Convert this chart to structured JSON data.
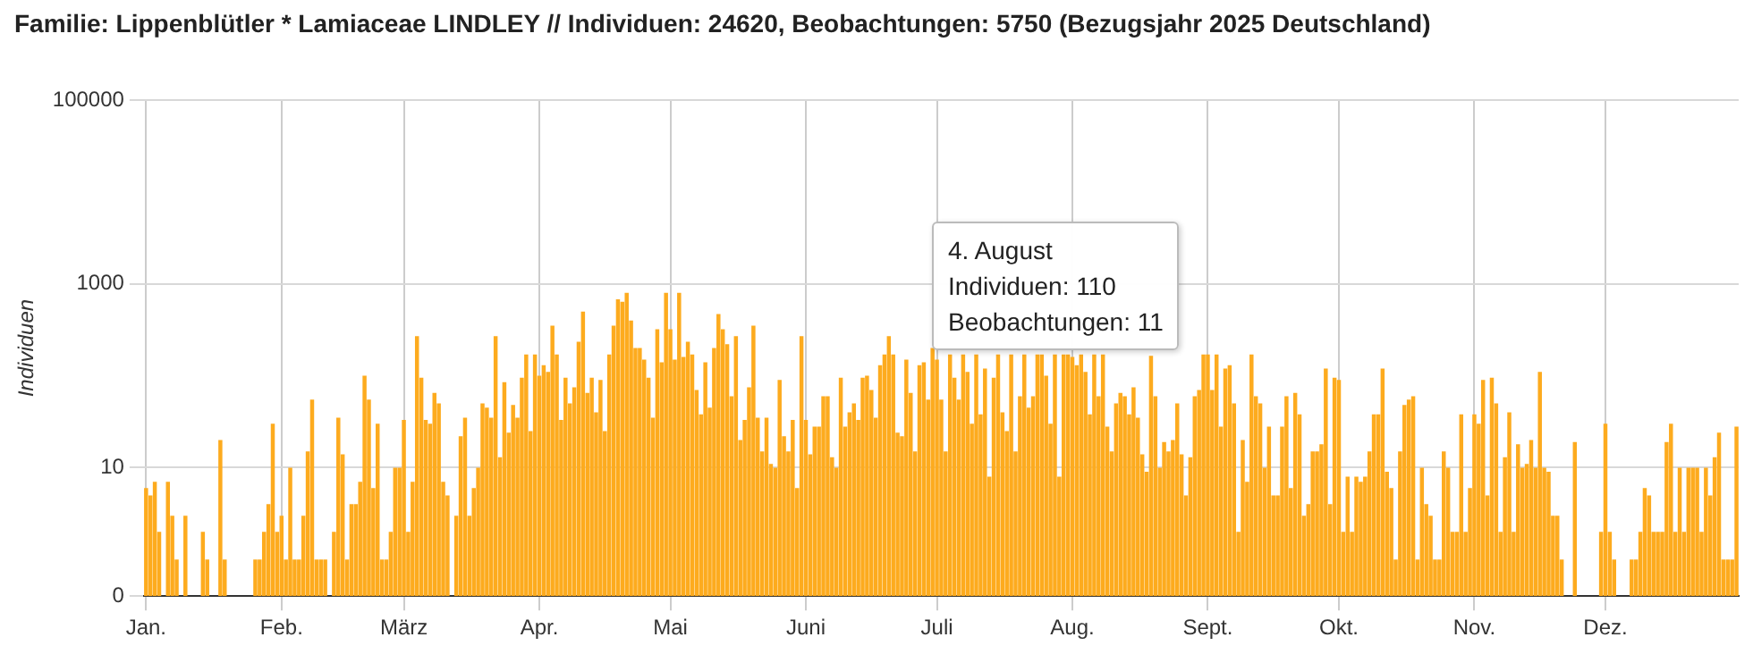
{
  "chart_data": {
    "type": "bar",
    "title": "Familie: Lippenblütler * Lamiaceae LINDLEY // Individuen: 24620, Beobachtungen: 5750 (Bezugsjahr 2025 Deutschland)",
    "ylabel": "Individuen",
    "categories": [
      "Jan.",
      null,
      null,
      null,
      null,
      null,
      null,
      null,
      null,
      null,
      null,
      null,
      null,
      null,
      null,
      null,
      null,
      null,
      null,
      null,
      null,
      null,
      null,
      null,
      null,
      null,
      null,
      null,
      null,
      null,
      null,
      "Feb.",
      null,
      null,
      null,
      null,
      null,
      null,
      null,
      null,
      null,
      null,
      null,
      null,
      null,
      null,
      null,
      null,
      null,
      null,
      null,
      null,
      null,
      null,
      null,
      null,
      null,
      null,
      null,
      "März",
      null,
      null,
      null,
      null,
      null,
      null,
      null,
      null,
      null,
      null,
      null,
      null,
      null,
      null,
      null,
      null,
      null,
      null,
      null,
      null,
      null,
      null,
      null,
      null,
      null,
      null,
      null,
      null,
      null,
      null,
      "Apr.",
      null,
      null,
      null,
      null,
      null,
      null,
      null,
      null,
      null,
      null,
      null,
      null,
      null,
      null,
      null,
      null,
      null,
      null,
      null,
      null,
      null,
      null,
      null,
      null,
      null,
      null,
      null,
      null,
      null,
      "Mai",
      null,
      null,
      null,
      null,
      null,
      null,
      null,
      null,
      null,
      null,
      null,
      null,
      null,
      null,
      null,
      null,
      null,
      null,
      null,
      null,
      null,
      null,
      null,
      null,
      null,
      null,
      null,
      null,
      null,
      null,
      "Juni",
      null,
      null,
      null,
      null,
      null,
      null,
      null,
      null,
      null,
      null,
      null,
      null,
      null,
      null,
      null,
      null,
      null,
      null,
      null,
      null,
      null,
      null,
      null,
      null,
      null,
      null,
      null,
      null,
      null,
      "Juli",
      null,
      null,
      null,
      null,
      null,
      null,
      null,
      null,
      null,
      null,
      null,
      null,
      null,
      null,
      null,
      null,
      null,
      null,
      null,
      null,
      null,
      null,
      null,
      null,
      null,
      null,
      null,
      null,
      null,
      null,
      "Aug.",
      null,
      null,
      null,
      null,
      null,
      null,
      null,
      null,
      null,
      null,
      null,
      null,
      null,
      null,
      null,
      null,
      null,
      null,
      null,
      null,
      null,
      null,
      null,
      null,
      null,
      null,
      null,
      null,
      null,
      null,
      "Sept.",
      null,
      null,
      null,
      null,
      null,
      null,
      null,
      null,
      null,
      null,
      null,
      null,
      null,
      null,
      null,
      null,
      null,
      null,
      null,
      null,
      null,
      null,
      null,
      null,
      null,
      null,
      null,
      null,
      null,
      "Okt.",
      null,
      null,
      null,
      null,
      null,
      null,
      null,
      null,
      null,
      null,
      null,
      null,
      null,
      null,
      null,
      null,
      null,
      null,
      null,
      null,
      null,
      null,
      null,
      null,
      null,
      null,
      null,
      null,
      null,
      null,
      "Nov.",
      null,
      null,
      null,
      null,
      null,
      null,
      null,
      null,
      null,
      null,
      null,
      null,
      null,
      null,
      null,
      null,
      null,
      null,
      null,
      null,
      null,
      null,
      null,
      null,
      null,
      null,
      null,
      null,
      null,
      "Dez.",
      null,
      null,
      null,
      null,
      null,
      null,
      null,
      null,
      null,
      null,
      null,
      null,
      null,
      null,
      null,
      null,
      null,
      null,
      null,
      null,
      null,
      null,
      null,
      null,
      null,
      null,
      null,
      null,
      null,
      null
    ],
    "values": [
      6,
      5,
      7,
      2,
      null,
      7,
      3,
      1,
      null,
      3,
      null,
      null,
      null,
      2,
      1,
      null,
      null,
      20,
      1,
      null,
      null,
      null,
      null,
      null,
      null,
      1,
      1,
      2,
      4,
      30,
      2,
      3,
      1,
      10,
      1,
      1,
      3,
      15,
      55,
      1,
      1,
      1,
      null,
      2,
      35,
      14,
      1,
      4,
      4,
      7,
      100,
      55,
      6,
      30,
      1,
      1,
      2,
      10,
      10,
      33,
      2,
      7,
      270,
      95,
      33,
      30,
      65,
      50,
      7,
      5,
      null,
      3,
      22,
      35,
      3,
      6,
      10,
      50,
      45,
      35,
      270,
      13,
      85,
      24,
      48,
      35,
      95,
      170,
      25,
      170,
      100,
      130,
      110,
      350,
      170,
      33,
      95,
      50,
      75,
      235,
      500,
      65,
      95,
      40,
      90,
      25,
      170,
      350,
      680,
      640,
      800,
      400,
      200,
      200,
      150,
      95,
      35,
      320,
      140,
      800,
      320,
      150,
      800,
      160,
      235,
      170,
      70,
      38,
      140,
      45,
      200,
      470,
      320,
      220,
      60,
      270,
      20,
      33,
      75,
      350,
      35,
      15,
      35,
      11,
      10,
      90,
      22,
      15,
      33,
      6,
      270,
      33,
      14,
      28,
      28,
      60,
      60,
      13,
      10,
      95,
      28,
      40,
      50,
      33,
      95,
      100,
      70,
      35,
      130,
      170,
      270,
      170,
      24,
      22,
      150,
      65,
      15,
      130,
      140,
      55,
      200,
      150,
      55,
      15,
      170,
      95,
      55,
      170,
      110,
      30,
      170,
      38,
      120,
      8,
      95,
      170,
      40,
      25,
      170,
      15,
      60,
      170,
      45,
      60,
      170,
      170,
      100,
      30,
      170,
      8,
      170,
      170,
      160,
      130,
      170,
      110,
      38,
      170,
      60,
      170,
      28,
      15,
      50,
      65,
      60,
      38,
      75,
      35,
      14,
      9,
      165,
      60,
      10,
      19,
      15,
      20,
      50,
      14,
      5,
      13,
      60,
      70,
      170,
      170,
      70,
      170,
      28,
      120,
      130,
      50,
      2,
      20,
      7,
      170,
      60,
      50,
      10,
      28,
      5,
      5,
      28,
      60,
      6,
      65,
      38,
      3,
      4,
      15,
      15,
      18,
      120,
      4,
      95,
      90,
      2,
      8,
      2,
      8,
      7,
      8,
      15,
      38,
      38,
      120,
      9,
      6,
      1,
      15,
      48,
      55,
      60,
      1,
      10,
      4,
      3,
      1,
      1,
      15,
      10,
      2,
      2,
      38,
      2,
      6,
      38,
      30,
      90,
      5,
      95,
      50,
      2,
      13,
      40,
      2,
      18,
      10,
      11,
      20,
      10,
      110,
      10,
      9,
      3,
      3,
      1,
      null,
      null,
      19,
      null,
      null,
      null,
      null,
      null,
      2,
      30,
      2,
      1,
      null,
      null,
      null,
      1,
      1,
      2,
      6,
      5,
      2,
      2,
      2,
      19,
      30,
      2,
      10,
      2,
      10,
      10,
      10,
      2,
      10,
      5,
      13,
      24,
      1,
      1,
      1,
      28
    ],
    "color": "#fdab1e",
    "log": true,
    "ylim": [
      0.4,
      100000
    ],
    "yticks": [
      {
        "value": 0.4,
        "label": "0"
      },
      10,
      1000,
      100000
    ],
    "grid": true,
    "annotations": [
      "4. August\nIndividuen: 110\nBeobachtungen: 11"
    ]
  }
}
